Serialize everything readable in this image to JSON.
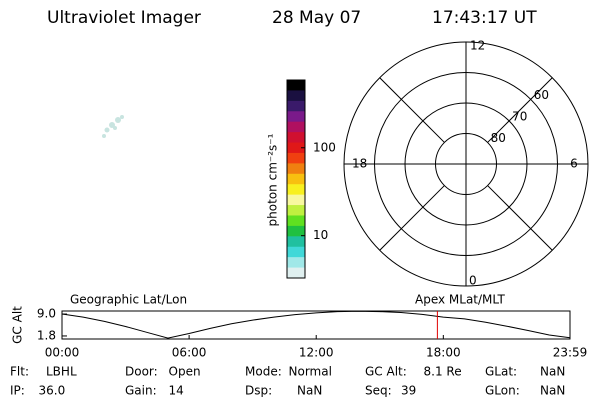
{
  "header": {
    "title": "Ultraviolet Imager",
    "date": "28 May 07",
    "time": "17:43:17 UT"
  },
  "colorbar": {
    "label": "photon cm⁻²s⁻¹",
    "scale": "log",
    "lim": [
      3.3,
      590
    ],
    "ticks": [
      10,
      100
    ],
    "colors": [
      "#000000",
      "#1a1040",
      "#3a1a6a",
      "#7a1a8a",
      "#b01060",
      "#d01030",
      "#e01818",
      "#f04010",
      "#f08010",
      "#f8c010",
      "#f8f020",
      "#f8f8a0",
      "#c0f040",
      "#60e020",
      "#20c040",
      "#20c0a0",
      "#40d8d8",
      "#a0e8e8",
      "#e0f0f0"
    ]
  },
  "polar": {
    "rlim": [
      90,
      50
    ],
    "circles": [
      80,
      70,
      60,
      50
    ],
    "lat_labels": [
      {
        "value": 80,
        "label": "80"
      },
      {
        "value": 70,
        "label": "70"
      },
      {
        "value": 60,
        "label": "60"
      }
    ],
    "mlt_labels": {
      "top": "12",
      "right": "6",
      "bottom": "0",
      "left": "18"
    }
  },
  "altitude": {
    "ylabel": "GC Alt",
    "left_label": "Geographic Lat/Lon",
    "right_label": "Apex MLat/MLT",
    "xlim": [
      0,
      23.98
    ],
    "ylim": [
      0.8,
      10.0
    ],
    "xticks": [
      {
        "value": 0,
        "label": "00:00"
      },
      {
        "value": 6,
        "label": "06:00"
      },
      {
        "value": 12,
        "label": "12:00"
      },
      {
        "value": 18,
        "label": "18:00"
      },
      {
        "value": 23.98,
        "label": "23:59"
      }
    ],
    "yticks": [
      {
        "value": 9.0,
        "label": "9.0"
      },
      {
        "value": 1.8,
        "label": "1.8"
      }
    ],
    "x": [
      0,
      1,
      2,
      3,
      4,
      5,
      6,
      7,
      8,
      9,
      10,
      11,
      12,
      13,
      14,
      15,
      16,
      17,
      18,
      19,
      20,
      21,
      22,
      23,
      23.98
    ],
    "values": [
      9.0,
      8.0,
      6.6,
      4.9,
      3.0,
      1.1,
      2.6,
      4.3,
      5.8,
      7.0,
      8.0,
      8.8,
      9.4,
      9.8,
      9.9,
      9.8,
      9.5,
      8.9,
      8.0,
      7.4,
      6.3,
      5.0,
      3.6,
      2.1,
      1.2
    ],
    "marker_hour": 17.72,
    "marker_color": "#e00000"
  },
  "info": {
    "row1": [
      [
        "Flt:",
        "LBHL"
      ],
      [
        "Door:",
        "Open"
      ],
      [
        "Mode:",
        "Normal"
      ],
      [
        "GC Alt:",
        "8.1 Re"
      ],
      [
        "GLat:",
        "NaN"
      ]
    ],
    "row2": [
      [
        "IP:",
        "36.0"
      ],
      [
        "Gain:",
        "14"
      ],
      [
        "Dsp:",
        "NaN"
      ],
      [
        "Seq:",
        "39"
      ],
      [
        "GLon:",
        "NaN"
      ]
    ]
  }
}
